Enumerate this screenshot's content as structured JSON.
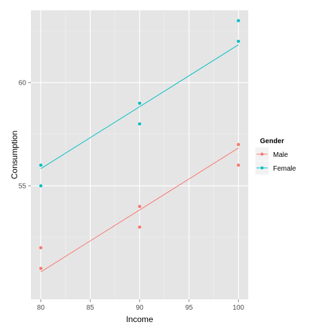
{
  "chart_data": {
    "type": "scatter",
    "xlabel": "Income",
    "ylabel": "Consumption",
    "xlim": [
      79,
      101
    ],
    "ylim": [
      49.5,
      63.5
    ],
    "x_ticks": [
      80,
      85,
      90,
      95,
      100
    ],
    "y_ticks": [
      55,
      60
    ],
    "grid": true,
    "legend": {
      "title": "Gender",
      "position": "right"
    },
    "series": [
      {
        "name": "Male",
        "color": "#f8766d",
        "points": [
          [
            80,
            51
          ],
          [
            80,
            52
          ],
          [
            90,
            53
          ],
          [
            90,
            54
          ],
          [
            100,
            56
          ],
          [
            100,
            57
          ]
        ],
        "trend": [
          [
            80,
            50.83
          ],
          [
            100,
            56.83
          ]
        ]
      },
      {
        "name": "Female",
        "color": "#00bfc4",
        "points": [
          [
            80,
            55
          ],
          [
            80,
            56
          ],
          [
            90,
            58
          ],
          [
            90,
            59
          ],
          [
            100,
            62
          ],
          [
            100,
            63
          ]
        ],
        "trend": [
          [
            80,
            55.83
          ],
          [
            100,
            61.83
          ]
        ]
      }
    ]
  }
}
